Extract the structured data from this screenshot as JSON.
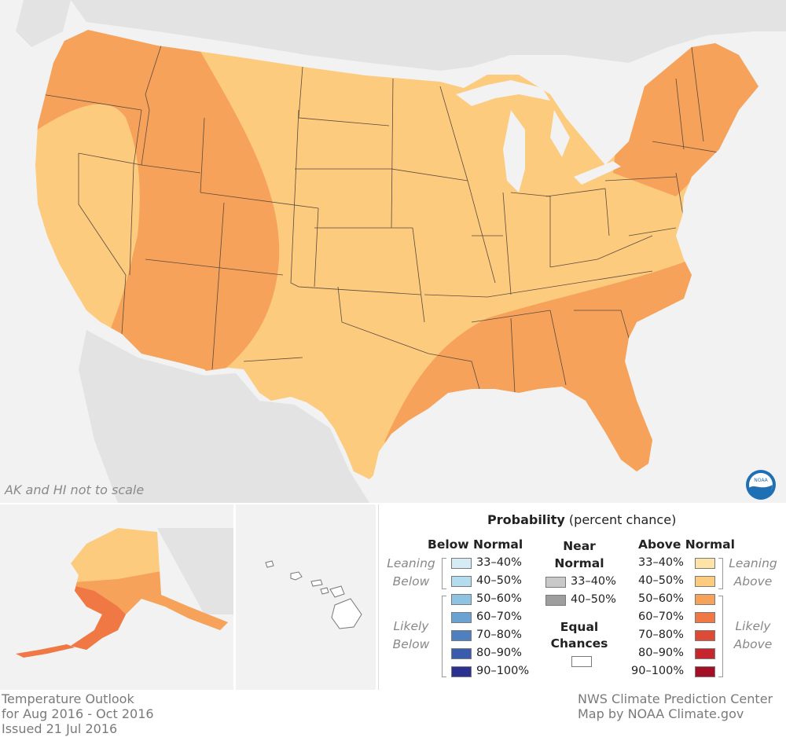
{
  "map": {
    "scale_note": "AK and HI not to scale",
    "logo_text": "NOAA",
    "colors": {
      "background": "#f2f2f2",
      "land_outside": "#e3e3e3",
      "leaning_above": "#fdcb7e",
      "above_50_60": "#f6a25b",
      "above_60_70": "#ef7845",
      "state_border": "#5a4a40"
    }
  },
  "legend": {
    "title_bold": "Probability",
    "title_rest": " (percent chance)",
    "below_normal": "Below Normal",
    "near_normal": "Near Normal",
    "above_normal": "Above Normal",
    "equal_chances": "Equal Chances",
    "leaning_below": "Leaning Below",
    "likely_below": "Likely Below",
    "leaning_above": "Leaning Above",
    "likely_above": "Likely Above",
    "below": [
      {
        "label": "33–40%",
        "color": "#d6ecf5"
      },
      {
        "label": "40–50%",
        "color": "#b3dcef"
      },
      {
        "label": "50–60%",
        "color": "#8ec4e2"
      },
      {
        "label": "60–70%",
        "color": "#6aa2d2"
      },
      {
        "label": "70–80%",
        "color": "#4e7fc0"
      },
      {
        "label": "80–90%",
        "color": "#3a5cad"
      },
      {
        "label": "90–100%",
        "color": "#2b3190"
      }
    ],
    "near": [
      {
        "label": "33–40%",
        "color": "#c9c9c9"
      },
      {
        "label": "40–50%",
        "color": "#9e9e9e"
      }
    ],
    "above": [
      {
        "label": "33–40%",
        "color": "#fde3a6"
      },
      {
        "label": "40–50%",
        "color": "#fdcb7e"
      },
      {
        "label": "50–60%",
        "color": "#f6a25b"
      },
      {
        "label": "60–70%",
        "color": "#ef7845"
      },
      {
        "label": "70–80%",
        "color": "#de4a35"
      },
      {
        "label": "80–90%",
        "color": "#c6262e"
      },
      {
        "label": "90–100%",
        "color": "#a50f26"
      }
    ],
    "equal_color": "#ffffff"
  },
  "footer": {
    "left": [
      "Temperature Outlook",
      "for Aug 2016 - Oct 2016",
      "Issued 21 Jul 2016"
    ],
    "right": [
      "NWS Climate Prediction Center",
      "Map by NOAA Climate.gov"
    ]
  }
}
